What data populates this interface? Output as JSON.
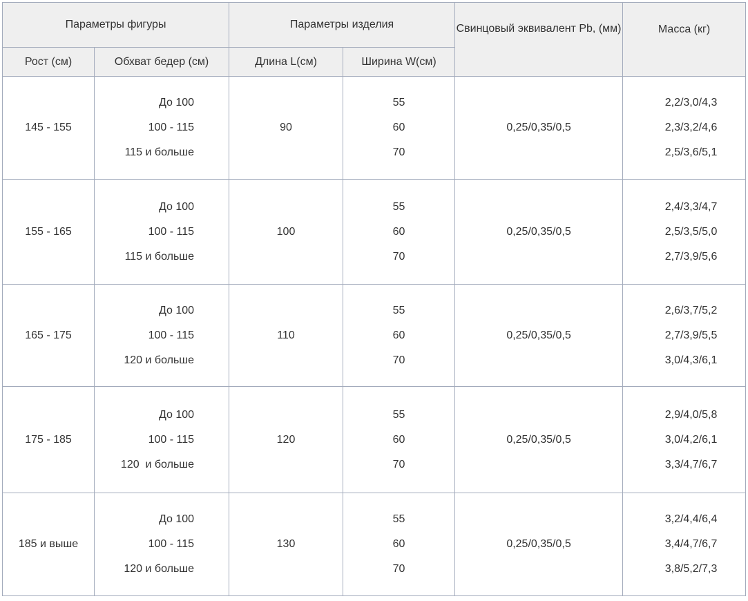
{
  "header": {
    "figure_params": "Параметры фигуры",
    "product_params": "Параметры изделия",
    "lead_equivalent": "Свинцовый эквивалент Pb, (мм)",
    "mass": "Масса (кг)",
    "height": "Рост (см)",
    "hip": "Обхват бедер (см)",
    "length": "Длина L(см)",
    "width": "Ширина W(см)"
  },
  "rows": [
    {
      "height": "145 - 155",
      "hips": [
        "До 100",
        "100 - 115",
        "115 и больше"
      ],
      "length": "90",
      "widths": [
        "55",
        "60",
        "70"
      ],
      "pb": "0,25/0,35/0,5",
      "mass": [
        "2,2/3,0/4,3",
        "2,3/3,2/4,6",
        "2,5/3,6/5,1"
      ]
    },
    {
      "height": "155 - 165",
      "hips": [
        "До 100",
        "100 - 115",
        "115 и больше"
      ],
      "length": "100",
      "widths": [
        "55",
        "60",
        "70"
      ],
      "pb": "0,25/0,35/0,5",
      "mass": [
        "2,4/3,3/4,7",
        "2,5/3,5/5,0",
        "2,7/3,9/5,6"
      ]
    },
    {
      "height": "165 - 175",
      "hips": [
        "До 100",
        "100 - 115",
        "120 и больше"
      ],
      "length": "110",
      "widths": [
        "55",
        "60",
        "70"
      ],
      "pb": "0,25/0,35/0,5",
      "mass": [
        "2,6/3,7/5,2",
        "2,7/3,9/5,5",
        "3,0/4,3/6,1"
      ]
    },
    {
      "height": "175 - 185",
      "hips": [
        "До 100",
        "100 - 115",
        "120  и больше"
      ],
      "length": "120",
      "widths": [
        "55",
        "60",
        "70"
      ],
      "pb": "0,25/0,35/0,5",
      "mass": [
        "2,9/4,0/5,8",
        "3,0/4,2/6,1",
        "3,3/4,7/6,7"
      ]
    },
    {
      "height": "185 и выше",
      "hips": [
        "До 100",
        "100 - 115",
        "120 и больше"
      ],
      "length": "130",
      "widths": [
        "55",
        "60",
        "70"
      ],
      "pb": "0,25/0,35/0,5",
      "mass": [
        "3,2/4,4/6,4",
        "3,4/4,7/6,7",
        "3,8/5,2/7,3"
      ]
    }
  ]
}
